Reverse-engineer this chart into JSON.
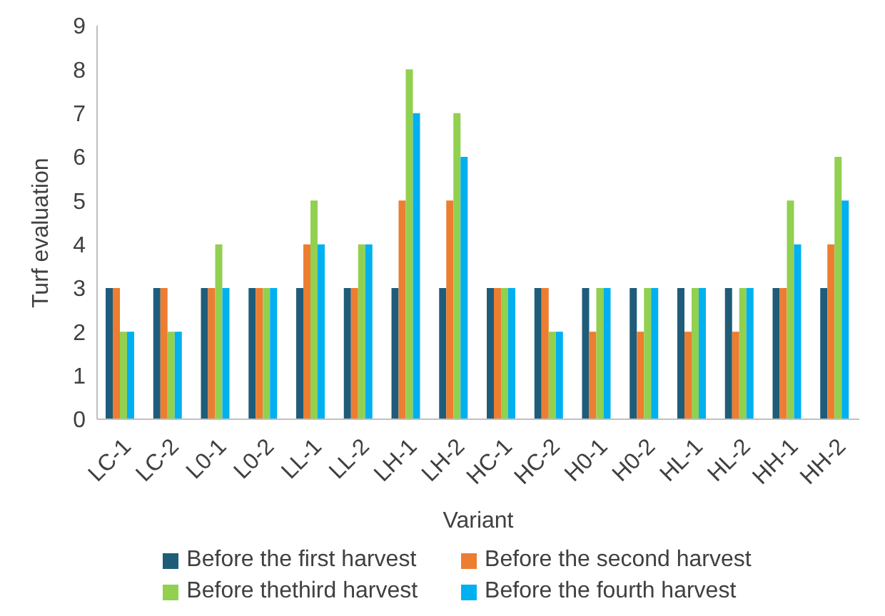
{
  "chart_data": {
    "type": "bar",
    "xlabel": "Variant",
    "ylabel": "Turf evaluation",
    "categories": [
      "LC-1",
      "LC-2",
      "L0-1",
      "L0-2",
      "LL-1",
      "LL-2",
      "LH-1",
      "LH-2",
      "HC-1",
      "HC-2",
      "H0-1",
      "H0-2",
      "HL-1",
      "HL-2",
      "HH-1",
      "HH-2"
    ],
    "series": [
      {
        "name": "Before the first harvest",
        "color": "#1f5c7a",
        "values": [
          3,
          3,
          3,
          3,
          3,
          3,
          3,
          3,
          3,
          3,
          3,
          3,
          3,
          3,
          3,
          3
        ]
      },
      {
        "name": "Before the second harvest",
        "color": "#ed7d31",
        "values": [
          3,
          3,
          3,
          3,
          4,
          3,
          5,
          5,
          3,
          3,
          2,
          2,
          2,
          2,
          3,
          4
        ]
      },
      {
        "name": "Before thethird harvest",
        "color": "#92d050",
        "values": [
          2,
          2,
          4,
          3,
          5,
          4,
          8,
          7,
          3,
          2,
          3,
          3,
          3,
          3,
          5,
          6
        ]
      },
      {
        "name": "Before the fourth harvest",
        "color": "#00b0f0",
        "values": [
          2,
          2,
          3,
          3,
          4,
          4,
          7,
          6,
          3,
          2,
          3,
          3,
          3,
          3,
          4,
          5
        ]
      }
    ],
    "ylim": [
      0,
      9
    ],
    "yticks": [
      0,
      1,
      2,
      3,
      4,
      5,
      6,
      7,
      8,
      9
    ],
    "legend": "bottom"
  }
}
